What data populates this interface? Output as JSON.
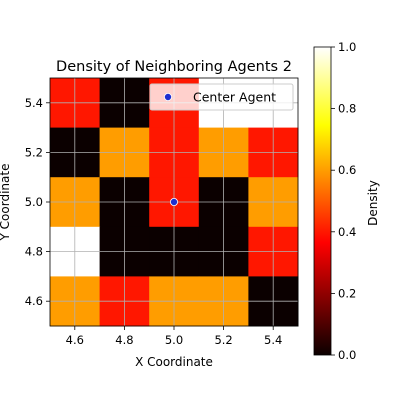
{
  "chart_data": {
    "type": "heatmap",
    "title": "Density of Neighboring Agents 2",
    "xlabel": "X Coordinate",
    "ylabel": "Y Coordinate",
    "xlim": [
      4.5,
      5.5
    ],
    "ylim": [
      4.5,
      5.5
    ],
    "x_ticks": [
      "4.6",
      "4.8",
      "5.0",
      "5.2",
      "5.4"
    ],
    "y_ticks": [
      "4.6",
      "4.8",
      "5.0",
      "5.2",
      "5.4"
    ],
    "grid": true,
    "grid_size": 5,
    "rows_top_to_bottom": [
      [
        0.4,
        0.0,
        0.4,
        1.0,
        1.0
      ],
      [
        0.0,
        0.6,
        0.4,
        0.6,
        0.4
      ],
      [
        0.6,
        0.0,
        0.4,
        0.0,
        0.6
      ],
      [
        1.0,
        0.0,
        0.0,
        0.0,
        0.4
      ],
      [
        0.6,
        0.4,
        0.6,
        0.6,
        0.0
      ]
    ],
    "colormap": "hot",
    "colorbar": {
      "label": "Density",
      "range": [
        0.0,
        1.0
      ],
      "ticks": [
        "0.0",
        "0.2",
        "0.4",
        "0.6",
        "0.8",
        "1.0"
      ]
    },
    "points": [
      {
        "label": "Center Agent",
        "x": 5.0,
        "y": 5.0,
        "color": "#1f2fd0"
      }
    ],
    "legend": {
      "position": "upper-right",
      "entries": [
        "Center Agent"
      ]
    }
  }
}
